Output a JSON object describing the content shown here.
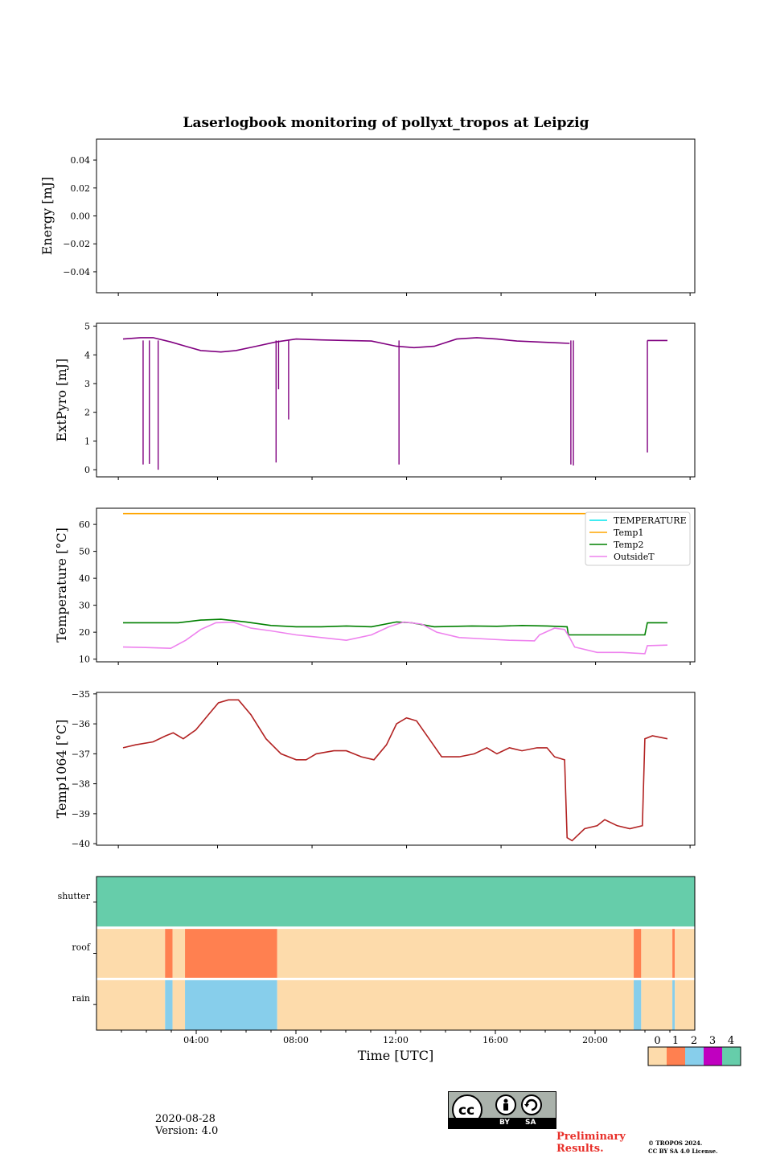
{
  "title": "Laserlogbook monitoring of pollyxt_tropos at Leipzig",
  "chart_data": [
    {
      "type": "line",
      "panel": "energy",
      "ylabel": "Energy [mJ]",
      "ylim": [
        -0.055,
        0.055
      ],
      "yticks": [
        "0.04",
        "0.02",
        "0.00",
        "−0.02",
        "−0.04"
      ],
      "ytick_values": [
        0.04,
        0.02,
        0.0,
        -0.02,
        -0.04
      ],
      "xlim": [
        0,
        24
      ],
      "series": []
    },
    {
      "type": "line",
      "panel": "extpyro",
      "ylabel": "ExtPyro [mJ]",
      "ylim": [
        -0.25,
        5.1
      ],
      "yticks": [
        "5",
        "4",
        "3",
        "2",
        "1",
        "0"
      ],
      "ytick_values": [
        5,
        4,
        3,
        2,
        1,
        0
      ],
      "xlim": [
        0,
        24
      ],
      "series": [
        {
          "name": "ExtPyro",
          "color": "#800080",
          "points": [
            [
              1.1,
              4.55
            ],
            [
              1.8,
              4.6
            ],
            [
              2.3,
              4.6
            ],
            [
              3.0,
              4.45
            ],
            [
              3.6,
              4.3
            ],
            [
              4.2,
              4.15
            ],
            [
              5.0,
              4.1
            ],
            [
              5.6,
              4.15
            ],
            [
              6.4,
              4.3
            ],
            [
              7.2,
              4.45
            ],
            [
              8.0,
              4.55
            ],
            [
              9.0,
              4.52
            ],
            [
              10.0,
              4.5
            ],
            [
              11.0,
              4.48
            ],
            [
              12.0,
              4.3
            ],
            [
              12.7,
              4.25
            ],
            [
              13.5,
              4.3
            ],
            [
              14.4,
              4.55
            ],
            [
              15.2,
              4.6
            ],
            [
              16.0,
              4.55
            ],
            [
              16.8,
              4.48
            ],
            [
              17.6,
              4.45
            ],
            [
              18.4,
              4.42
            ],
            [
              18.9,
              4.4
            ]
          ],
          "segment2": [
            [
              22.0,
              4.5
            ],
            [
              22.8,
              4.5
            ]
          ],
          "drops": [
            [
              1.9,
              0.18
            ],
            [
              2.15,
              0.2
            ],
            [
              2.5,
              0.0
            ],
            [
              7.2,
              0.25
            ],
            [
              7.3,
              2.8
            ],
            [
              7.7,
              1.75
            ],
            [
              12.1,
              0.18
            ],
            [
              18.95,
              0.18
            ],
            [
              19.05,
              0.15
            ],
            [
              22.0,
              0.6
            ]
          ]
        }
      ]
    },
    {
      "type": "line",
      "panel": "temperature",
      "ylabel": "Temperature [°C]",
      "ylim": [
        9,
        66
      ],
      "yticks": [
        "60",
        "50",
        "40",
        "30",
        "20",
        "10"
      ],
      "ytick_values": [
        60,
        50,
        40,
        30,
        20,
        10
      ],
      "xlim": [
        0,
        24
      ],
      "legend_position": "top-right",
      "series": [
        {
          "name": "TEMPERATURE",
          "color": "#00e5ee",
          "points": []
        },
        {
          "name": "Temp1",
          "color": "#ffa500",
          "points": [
            [
              1.1,
              64
            ],
            [
              22.8,
              64
            ]
          ]
        },
        {
          "name": "Temp2",
          "color": "#008000",
          "points": [
            [
              1.1,
              23.5
            ],
            [
              2.5,
              23.5
            ],
            [
              3.3,
              23.5
            ],
            [
              4.2,
              24.5
            ],
            [
              5.0,
              24.8
            ],
            [
              6.0,
              23.8
            ],
            [
              7.0,
              22.5
            ],
            [
              8.0,
              22.0
            ],
            [
              9.0,
              22.0
            ],
            [
              10.0,
              22.3
            ],
            [
              11.0,
              22.0
            ],
            [
              12.0,
              23.8
            ],
            [
              12.6,
              23.5
            ],
            [
              13.5,
              22.0
            ],
            [
              15.0,
              22.3
            ],
            [
              16.0,
              22.2
            ],
            [
              17.0,
              22.5
            ],
            [
              18.0,
              22.3
            ],
            [
              18.8,
              22.0
            ],
            [
              18.85,
              19.0
            ],
            [
              21.0,
              19.0
            ],
            [
              21.9,
              19.0
            ],
            [
              22.0,
              23.5
            ],
            [
              22.8,
              23.5
            ]
          ]
        },
        {
          "name": "OutsideT",
          "color": "#ee82ee",
          "points": [
            [
              1.1,
              14.5
            ],
            [
              2.0,
              14.3
            ],
            [
              3.0,
              14.0
            ],
            [
              3.6,
              17.0
            ],
            [
              4.2,
              21.0
            ],
            [
              4.8,
              23.5
            ],
            [
              5.5,
              23.7
            ],
            [
              6.2,
              21.5
            ],
            [
              7.0,
              20.5
            ],
            [
              8.0,
              19.0
            ],
            [
              9.0,
              18.0
            ],
            [
              10.0,
              17.0
            ],
            [
              11.0,
              19.0
            ],
            [
              11.7,
              22.0
            ],
            [
              12.3,
              23.8
            ],
            [
              13.0,
              23.0
            ],
            [
              13.6,
              20.0
            ],
            [
              14.5,
              18.0
            ],
            [
              15.5,
              17.5
            ],
            [
              16.5,
              17.0
            ],
            [
              17.5,
              16.8
            ],
            [
              17.7,
              19.0
            ],
            [
              18.3,
              21.5
            ],
            [
              18.7,
              21.0
            ],
            [
              18.9,
              18.0
            ],
            [
              19.1,
              14.5
            ],
            [
              20.0,
              12.5
            ],
            [
              21.0,
              12.5
            ],
            [
              21.9,
              12.0
            ],
            [
              22.0,
              15.0
            ],
            [
              22.8,
              15.2
            ]
          ]
        }
      ]
    },
    {
      "type": "line",
      "panel": "temp1064",
      "ylabel": "Temp1064 [°C]",
      "ylim": [
        -40.05,
        -34.95
      ],
      "yticks": [
        "−35",
        "−36",
        "−37",
        "−38",
        "−39",
        "−40"
      ],
      "ytick_values": [
        -35,
        -36,
        -37,
        -38,
        -39,
        -40
      ],
      "xlim": [
        0,
        24
      ],
      "series": [
        {
          "name": "Temp1064",
          "color": "#b22222",
          "points": [
            [
              1.1,
              -36.8
            ],
            [
              1.6,
              -36.7
            ],
            [
              2.3,
              -36.6
            ],
            [
              2.8,
              -36.4
            ],
            [
              3.1,
              -36.3
            ],
            [
              3.5,
              -36.5
            ],
            [
              4.0,
              -36.2
            ],
            [
              4.5,
              -35.7
            ],
            [
              4.9,
              -35.3
            ],
            [
              5.3,
              -35.2
            ],
            [
              5.7,
              -35.2
            ],
            [
              6.2,
              -35.7
            ],
            [
              6.8,
              -36.5
            ],
            [
              7.4,
              -37.0
            ],
            [
              8.0,
              -37.2
            ],
            [
              8.4,
              -37.2
            ],
            [
              8.8,
              -37.0
            ],
            [
              9.5,
              -36.9
            ],
            [
              10.0,
              -36.9
            ],
            [
              10.6,
              -37.1
            ],
            [
              11.1,
              -37.2
            ],
            [
              11.6,
              -36.7
            ],
            [
              12.0,
              -36.0
            ],
            [
              12.4,
              -35.8
            ],
            [
              12.8,
              -35.9
            ],
            [
              13.3,
              -36.5
            ],
            [
              13.8,
              -37.1
            ],
            [
              14.5,
              -37.1
            ],
            [
              15.1,
              -37.0
            ],
            [
              15.6,
              -36.8
            ],
            [
              16.0,
              -37.0
            ],
            [
              16.5,
              -36.8
            ],
            [
              17.0,
              -36.9
            ],
            [
              17.6,
              -36.8
            ],
            [
              18.0,
              -36.8
            ],
            [
              18.3,
              -37.1
            ],
            [
              18.7,
              -37.2
            ],
            [
              18.8,
              -39.8
            ],
            [
              19.0,
              -39.9
            ],
            [
              19.5,
              -39.5
            ],
            [
              20.0,
              -39.4
            ],
            [
              20.3,
              -39.2
            ],
            [
              20.8,
              -39.4
            ],
            [
              21.3,
              -39.5
            ],
            [
              21.8,
              -39.4
            ],
            [
              21.9,
              -36.5
            ],
            [
              22.2,
              -36.4
            ],
            [
              22.8,
              -36.5
            ]
          ]
        }
      ]
    },
    {
      "type": "heatmap",
      "panel": "flags",
      "rows": [
        "shutter",
        "roof",
        "rain"
      ],
      "xlim": [
        0,
        24
      ],
      "xticks": [
        "04:00",
        "08:00",
        "12:00",
        "16:00",
        "20:00"
      ],
      "xtick_values": [
        4,
        8,
        12,
        16,
        20
      ],
      "xlabel": "Time [UTC]",
      "colorbar_labels": [
        "0",
        "1",
        "2",
        "3",
        "4"
      ],
      "colorbar_colors": [
        "#fddbab",
        "#ff8050",
        "#87ceeb",
        "#c000c0",
        "#66cdaa"
      ],
      "intervals": {
        "shutter": [
          [
            0,
            24,
            4
          ]
        ],
        "roof": [
          [
            0,
            2.75,
            0
          ],
          [
            2.75,
            3.05,
            1
          ],
          [
            3.05,
            3.55,
            0
          ],
          [
            3.55,
            7.25,
            1
          ],
          [
            7.25,
            21.55,
            0
          ],
          [
            21.55,
            21.85,
            1
          ],
          [
            21.85,
            23.1,
            0
          ],
          [
            23.1,
            23.2,
            1
          ],
          [
            23.2,
            24,
            0
          ]
        ],
        "rain": [
          [
            0,
            2.75,
            0
          ],
          [
            2.75,
            3.05,
            2
          ],
          [
            3.05,
            3.55,
            0
          ],
          [
            3.55,
            7.25,
            2
          ],
          [
            7.25,
            21.55,
            0
          ],
          [
            21.55,
            21.85,
            2
          ],
          [
            21.85,
            23.1,
            0
          ],
          [
            23.1,
            23.2,
            2
          ],
          [
            23.2,
            24,
            0
          ]
        ]
      }
    }
  ],
  "footer": {
    "date": "2020-08-28",
    "version": "Version: 4.0",
    "preliminary_1": "Preliminary",
    "preliminary_2": "Results.",
    "copyright_1": "© TROPOS 2024.",
    "copyright_2": "CC BY SA 4.0 License.",
    "cc_by": "BY",
    "cc_sa": "SA",
    "cc_mark": "cc"
  }
}
